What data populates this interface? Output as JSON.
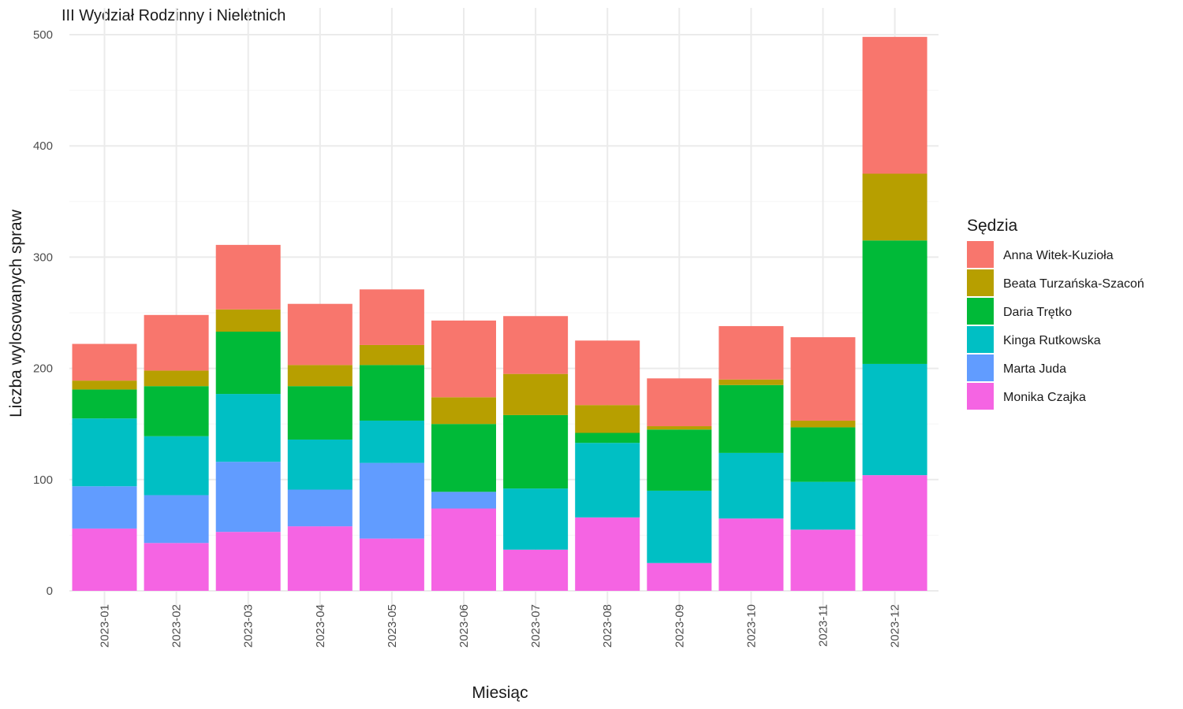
{
  "chart_data": {
    "type": "bar",
    "stacked": true,
    "title": "III Wydział Rodzinny i Nieletnich",
    "xlabel": "Miesiąc",
    "ylabel": "Liczba wylosowanych spraw",
    "ylim": [
      0,
      500
    ],
    "yticks": [
      0,
      100,
      200,
      300,
      400,
      500
    ],
    "grid": true,
    "legend_title": "Sędzia",
    "legend_position": "right",
    "categories": [
      "2023-01",
      "2023-02",
      "2023-03",
      "2023-04",
      "2023-05",
      "2023-06",
      "2023-07",
      "2023-08",
      "2023-09",
      "2023-10",
      "2023-11",
      "2023-12"
    ],
    "series": [
      {
        "name": "Anna Witek-Kuzioła",
        "color": "#F8766D",
        "values": [
          33,
          50,
          58,
          55,
          50,
          69,
          52,
          58,
          43,
          48,
          75,
          123
        ]
      },
      {
        "name": "Beata Turzańska-Szacoń",
        "color": "#B79F00",
        "values": [
          8,
          14,
          20,
          19,
          18,
          24,
          37,
          25,
          3,
          5,
          6,
          60
        ]
      },
      {
        "name": "Daria Trętko",
        "color": "#00BA38",
        "values": [
          26,
          45,
          56,
          48,
          50,
          61,
          66,
          9,
          55,
          61,
          49,
          111
        ]
      },
      {
        "name": "Kinga Rutkowska",
        "color": "#00BFC4",
        "values": [
          61,
          53,
          61,
          45,
          38,
          0,
          55,
          67,
          65,
          59,
          43,
          100
        ]
      },
      {
        "name": "Marta Juda",
        "color": "#619CFF",
        "values": [
          38,
          43,
          63,
          33,
          68,
          15,
          0,
          0,
          0,
          0,
          0,
          0
        ]
      },
      {
        "name": "Monika Czajka",
        "color": "#F564E3",
        "values": [
          56,
          43,
          53,
          58,
          47,
          74,
          37,
          66,
          25,
          65,
          55,
          104
        ]
      }
    ]
  }
}
